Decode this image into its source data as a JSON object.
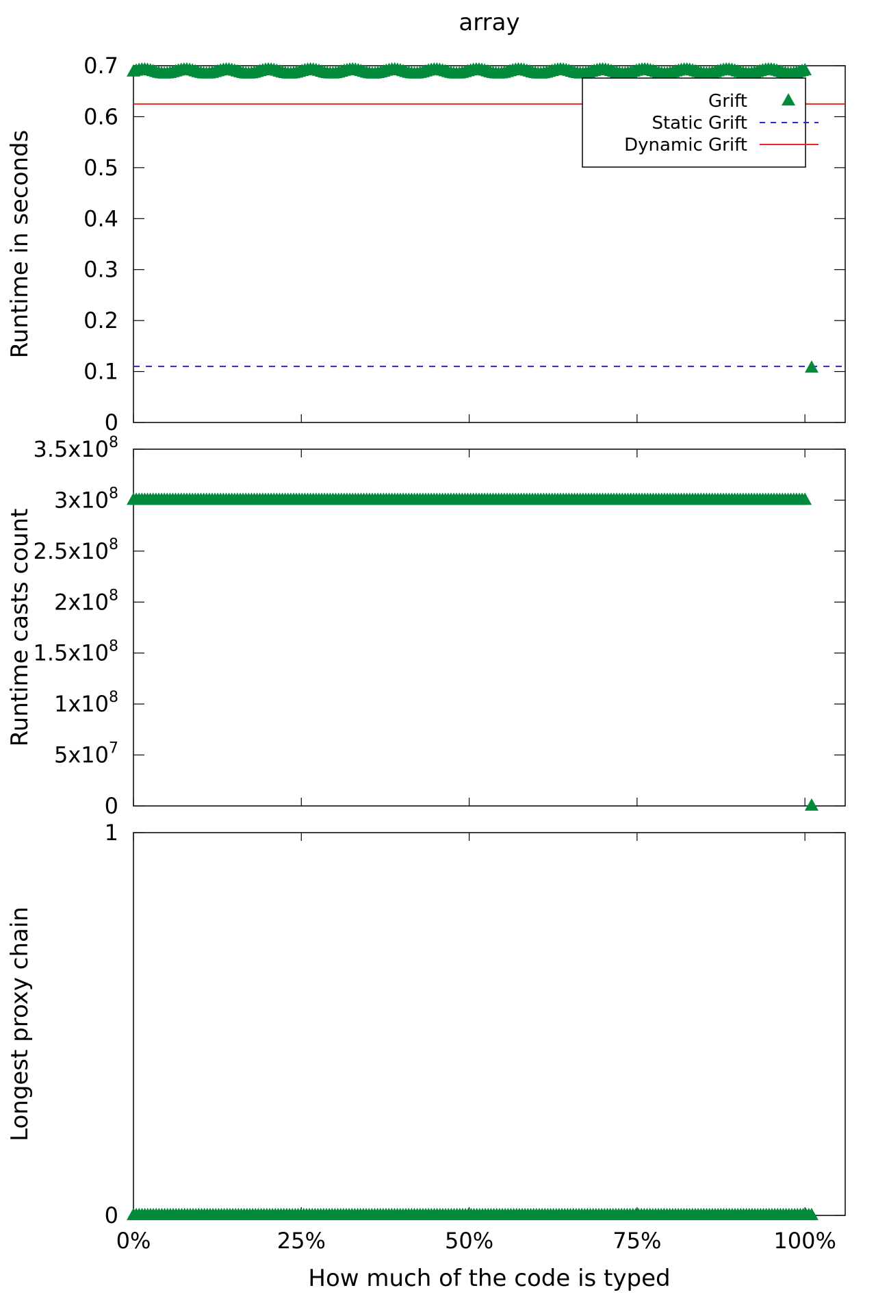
{
  "chart_data": [
    {
      "type": "scatter",
      "title": "array",
      "ylabel": "Runtime in seconds",
      "xlabel": "",
      "xlim": [
        0,
        1.06
      ],
      "ylim": [
        0,
        0.7
      ],
      "y_ticks": [
        {
          "v": 0,
          "label": "0"
        },
        {
          "v": 0.1,
          "label": "0.1"
        },
        {
          "v": 0.2,
          "label": "0.2"
        },
        {
          "v": 0.3,
          "label": "0.3"
        },
        {
          "v": 0.4,
          "label": "0.4"
        },
        {
          "v": 0.5,
          "label": "0.5"
        },
        {
          "v": 0.6,
          "label": "0.6"
        },
        {
          "v": 0.7,
          "label": "0.7"
        }
      ],
      "legend_position": "top-right",
      "legend": [
        "Grift",
        "Static Grift",
        "Dynamic Grift"
      ],
      "reference_lines": [
        {
          "name": "Static Grift",
          "value": 0.11,
          "color": "#2222ee",
          "dash": "dashed"
        },
        {
          "name": "Dynamic Grift",
          "value": 0.625,
          "color": "#e8261c",
          "dash": "solid"
        }
      ],
      "series": [
        {
          "name": "Grift",
          "color": "#008a3a",
          "marker": "triangle",
          "x_range": [
            0,
            1.0
          ],
          "count": 240,
          "y": 0.688,
          "y_jitter": 0.004,
          "extra_points": [
            {
              "x": 1.01,
              "y": 0.107
            }
          ]
        }
      ]
    },
    {
      "type": "scatter",
      "title": "",
      "ylabel": "Runtime casts count",
      "xlabel": "",
      "xlim": [
        0,
        1.06
      ],
      "ylim": [
        0,
        350000000
      ],
      "y_ticks": [
        {
          "v": 0,
          "label": "0"
        },
        {
          "v": 50000000,
          "label": "5x10",
          "exp": "7"
        },
        {
          "v": 100000000,
          "label": "1x10",
          "exp": "8"
        },
        {
          "v": 150000000,
          "label": "1.5x10",
          "exp": "8"
        },
        {
          "v": 200000000,
          "label": "2x10",
          "exp": "8"
        },
        {
          "v": 250000000,
          "label": "2.5x10",
          "exp": "8"
        },
        {
          "v": 300000000,
          "label": "3x10",
          "exp": "8"
        },
        {
          "v": 350000000,
          "label": "3.5x10",
          "exp": "8"
        }
      ],
      "series": [
        {
          "name": "Grift",
          "color": "#008a3a",
          "marker": "triangle",
          "x_range": [
            0,
            1.0
          ],
          "count": 240,
          "y": 300000000,
          "y_jitter": 0,
          "extra_points": [
            {
              "x": 1.01,
              "y": 0
            }
          ]
        }
      ]
    },
    {
      "type": "scatter",
      "title": "",
      "ylabel": "Longest proxy chain",
      "xlabel": "How much of the code is typed",
      "xlim": [
        0,
        1.06
      ],
      "ylim": [
        0,
        1
      ],
      "y_ticks": [
        {
          "v": 0,
          "label": "0"
        },
        {
          "v": 1,
          "label": "1"
        }
      ],
      "x_ticks": [
        {
          "v": 0,
          "label": "0%"
        },
        {
          "v": 0.25,
          "label": "25%"
        },
        {
          "v": 0.5,
          "label": "50%"
        },
        {
          "v": 0.75,
          "label": "75%"
        },
        {
          "v": 1.0,
          "label": "100%"
        }
      ],
      "series": [
        {
          "name": "Grift",
          "color": "#008a3a",
          "marker": "triangle",
          "x_range": [
            0,
            1.01
          ],
          "count": 240,
          "y": 0,
          "y_jitter": 0,
          "extra_points": []
        }
      ]
    }
  ]
}
